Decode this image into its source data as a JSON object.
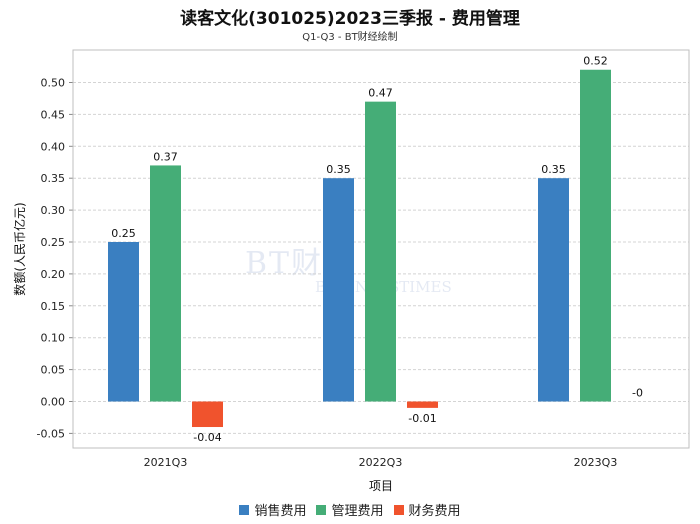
{
  "title": "读客文化(301025)2023三季报 - 费用管理",
  "subtitle": "Q1-Q3 - BT财经绘制",
  "watermark": {
    "main": "BT财经",
    "sub": "BUSINESSTIMES"
  },
  "chart_data": {
    "type": "bar",
    "categories": [
      "2021Q3",
      "2022Q3",
      "2023Q3"
    ],
    "series": [
      {
        "name": "销售费用",
        "values": [
          0.25,
          0.35,
          0.35
        ],
        "labels": [
          "0.25",
          "0.35",
          "0.35"
        ],
        "color": "#3a7fc1"
      },
      {
        "name": "管理费用",
        "values": [
          0.37,
          0.47,
          0.52
        ],
        "labels": [
          "0.37",
          "0.47",
          "0.52"
        ],
        "color": "#45ad77"
      },
      {
        "name": "财务费用",
        "values": [
          -0.04,
          -0.01,
          0
        ],
        "labels": [
          "-0.04",
          "-0.01",
          "-0"
        ],
        "color": "#f0532d"
      }
    ],
    "xlabel": "项目",
    "ylabel": "数额(人民币亿元)",
    "ylim": [
      -0.05,
      0.5
    ],
    "yticks": [
      "-0.05",
      "0.00",
      "0.05",
      "0.10",
      "0.15",
      "0.20",
      "0.25",
      "0.30",
      "0.35",
      "0.40",
      "0.45",
      "0.50"
    ],
    "grid": true,
    "legend": "bottom"
  }
}
